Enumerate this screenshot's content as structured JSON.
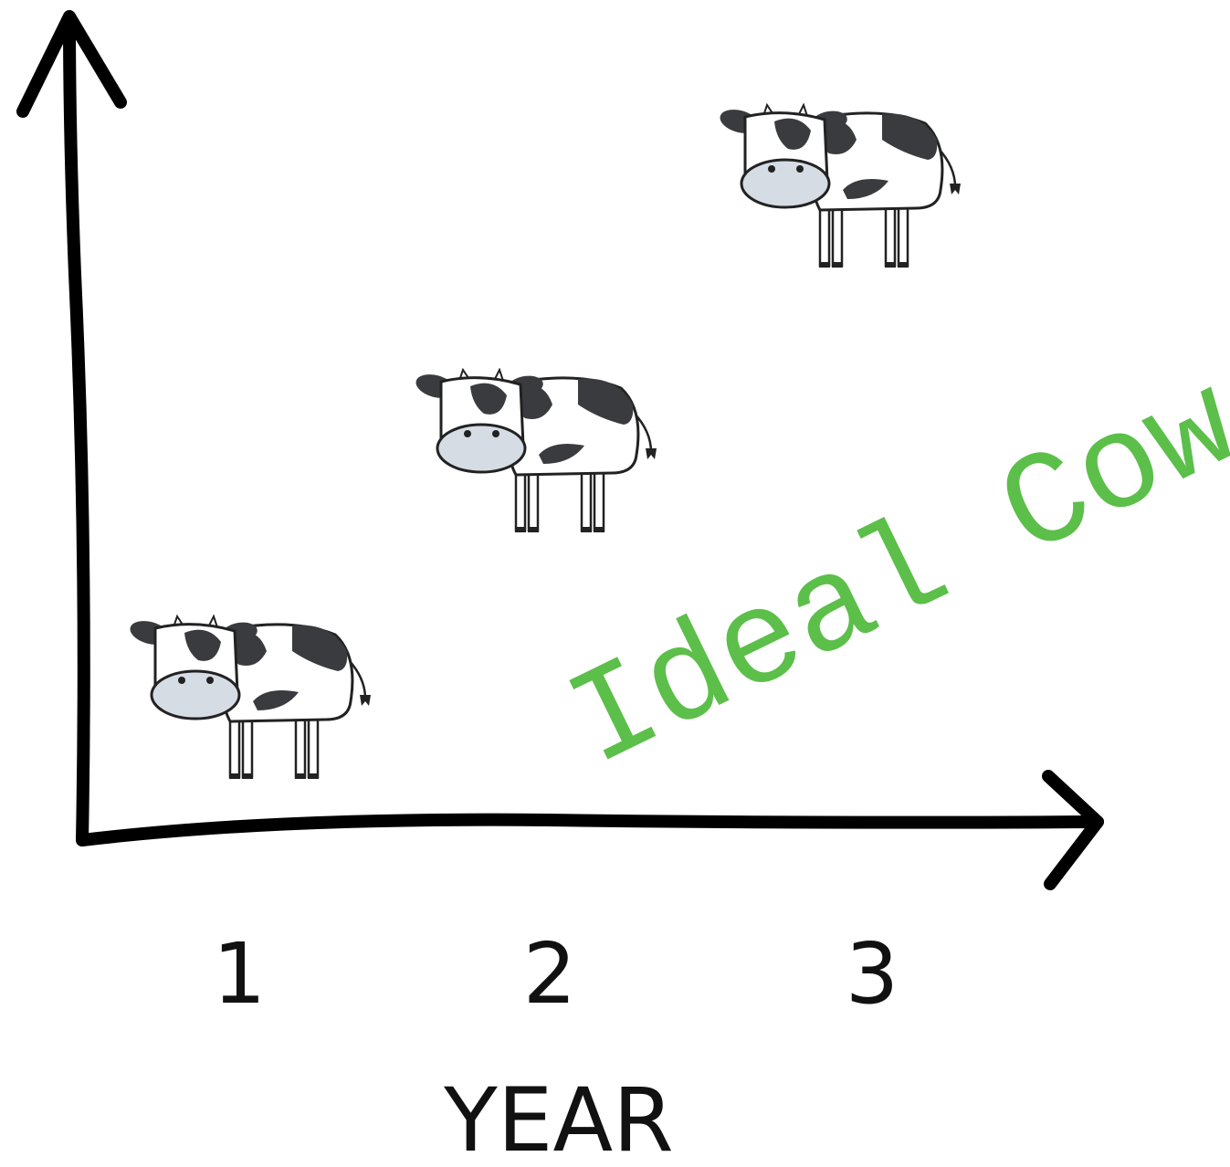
{
  "x_axis": {
    "ticks": [
      1,
      2,
      3
    ],
    "title": "YEAR"
  },
  "annotation": "Ideal Cow"
}
